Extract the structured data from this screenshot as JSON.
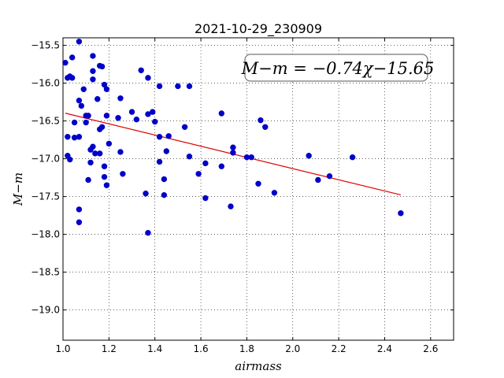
{
  "chart_data": {
    "type": "scatter",
    "title": "2021-10-29_230909",
    "xlabel": "airmass",
    "ylabel": "M−m",
    "xlim": [
      1.0,
      2.7
    ],
    "ylim": [
      -19.4,
      -15.4
    ],
    "y_inverted": true,
    "grid": true,
    "xticks": [
      "1.0",
      "1.2",
      "1.4",
      "1.6",
      "1.8",
      "2.0",
      "2.2",
      "2.4",
      "2.6"
    ],
    "yticks": [
      "−15.5",
      "−16.0",
      "−16.5",
      "−17.0",
      "−17.5",
      "−18.0",
      "−18.5",
      "−19.0"
    ],
    "annotation": "M−m = −0.74χ−15.65",
    "fit": {
      "slope": -0.74,
      "intercept": -15.65,
      "x_range": [
        1.01,
        2.47
      ],
      "color": "#e00000"
    },
    "point_color": "#0000c8",
    "points": [
      [
        1.01,
        -15.73
      ],
      [
        1.02,
        -15.93
      ],
      [
        1.03,
        -15.91
      ],
      [
        1.04,
        -15.66
      ],
      [
        1.04,
        -15.93
      ],
      [
        1.07,
        -15.45
      ],
      [
        1.07,
        -16.23
      ],
      [
        1.09,
        -16.08
      ],
      [
        1.08,
        -16.3
      ],
      [
        1.02,
        -16.71
      ],
      [
        1.05,
        -16.52
      ],
      [
        1.05,
        -16.72
      ],
      [
        1.07,
        -16.71
      ],
      [
        1.02,
        -16.96
      ],
      [
        1.03,
        -17.01
      ],
      [
        1.07,
        -17.67
      ],
      [
        1.07,
        -17.84
      ],
      [
        1.1,
        -16.52
      ],
      [
        1.1,
        -16.43
      ],
      [
        1.11,
        -16.43
      ],
      [
        1.13,
        -15.64
      ],
      [
        1.13,
        -15.84
      ],
      [
        1.13,
        -15.95
      ],
      [
        1.16,
        -15.77
      ],
      [
        1.17,
        -15.78
      ],
      [
        1.18,
        -16.02
      ],
      [
        1.19,
        -16.08
      ],
      [
        1.15,
        -16.21
      ],
      [
        1.19,
        -16.43
      ],
      [
        1.16,
        -16.61
      ],
      [
        1.17,
        -16.58
      ],
      [
        1.12,
        -16.88
      ],
      [
        1.13,
        -16.84
      ],
      [
        1.14,
        -16.93
      ],
      [
        1.16,
        -16.93
      ],
      [
        1.2,
        -16.8
      ],
      [
        1.12,
        -17.05
      ],
      [
        1.18,
        -17.1
      ],
      [
        1.11,
        -17.28
      ],
      [
        1.18,
        -17.24
      ],
      [
        1.19,
        -17.35
      ],
      [
        1.24,
        -16.46
      ],
      [
        1.25,
        -16.2
      ],
      [
        1.25,
        -16.91
      ],
      [
        1.26,
        -17.2
      ],
      [
        1.3,
        -16.38
      ],
      [
        1.32,
        -16.48
      ],
      [
        1.34,
        -15.83
      ],
      [
        1.37,
        -15.93
      ],
      [
        1.37,
        -16.41
      ],
      [
        1.39,
        -16.38
      ],
      [
        1.4,
        -16.51
      ],
      [
        1.42,
        -16.04
      ],
      [
        1.42,
        -16.71
      ],
      [
        1.42,
        -17.04
      ],
      [
        1.44,
        -17.27
      ],
      [
        1.45,
        -16.9
      ],
      [
        1.46,
        -16.7
      ],
      [
        1.36,
        -17.46
      ],
      [
        1.44,
        -17.48
      ],
      [
        1.37,
        -17.98
      ],
      [
        1.5,
        -16.04
      ],
      [
        1.53,
        -16.58
      ],
      [
        1.55,
        -16.04
      ],
      [
        1.55,
        -16.97
      ],
      [
        1.59,
        -17.2
      ],
      [
        1.62,
        -17.06
      ],
      [
        1.62,
        -17.52
      ],
      [
        1.69,
        -16.4
      ],
      [
        1.69,
        -17.1
      ],
      [
        1.73,
        -17.63
      ],
      [
        1.74,
        -16.85
      ],
      [
        1.74,
        -16.92
      ],
      [
        1.8,
        -16.98
      ],
      [
        1.82,
        -16.98
      ],
      [
        1.85,
        -17.33
      ],
      [
        1.86,
        -16.49
      ],
      [
        1.88,
        -16.58
      ],
      [
        1.92,
        -17.45
      ],
      [
        2.07,
        -16.96
      ],
      [
        2.11,
        -17.28
      ],
      [
        2.16,
        -17.23
      ],
      [
        2.26,
        -16.98
      ],
      [
        2.47,
        -17.72
      ]
    ]
  }
}
